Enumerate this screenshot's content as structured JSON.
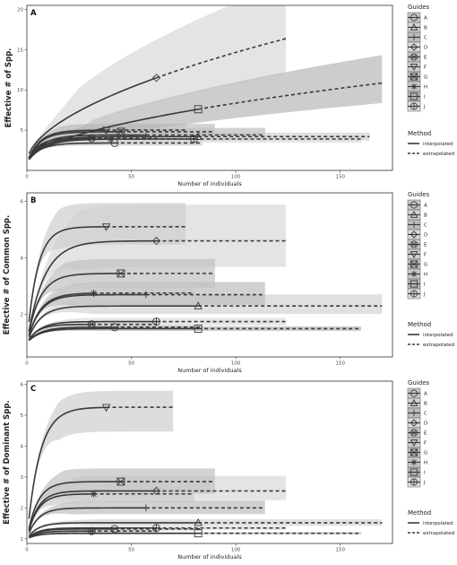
{
  "chart_data": [
    {
      "type": "line",
      "panel_label": "A",
      "xlabel": "Number of individuals",
      "ylabel": "Effective # of Spp.",
      "xlim": [
        0,
        175
      ],
      "ylim": [
        0,
        20.5
      ],
      "xticks": [
        "0",
        "50",
        "100",
        "150"
      ],
      "yticks": [
        "5",
        "10",
        "15",
        "20"
      ],
      "ytick_values": [
        5,
        10,
        15,
        20
      ],
      "series": [
        {
          "name": "A",
          "shape": "circle",
          "n": 42,
          "n_max": 84,
          "asym": 3.4,
          "k": 6,
          "band_lo": 0.88,
          "band_hi": 1.12,
          "shade": "#c8c8c8"
        },
        {
          "name": "B",
          "shape": "triangle",
          "n": 82,
          "n_max": 164,
          "asym": 4.2,
          "k": 8,
          "band_lo": 0.85,
          "band_hi": 1.15,
          "shade": "#d3d3d3"
        },
        {
          "name": "C",
          "shape": "plus",
          "n": 57,
          "n_max": 114,
          "asym": 4.4,
          "k": 7,
          "band_lo": 0.8,
          "band_hi": 1.25,
          "shade": "#bdbdbd"
        },
        {
          "name": "D",
          "shape": "diamond",
          "n": 62,
          "n_max": 124,
          "asym": 11.5,
          "k": 12,
          "power": true,
          "band_lo": 0.72,
          "band_hi": 1.45,
          "shade": "#d9d9d9"
        },
        {
          "name": "E",
          "shape": "xcircle",
          "n": 31,
          "n_max": 62,
          "asym": 4.0,
          "k": 5,
          "band_lo": 0.82,
          "band_hi": 1.22,
          "shade": "#c4c4c4"
        },
        {
          "name": "F",
          "shape": "triangle_down",
          "n": 38,
          "n_max": 76,
          "asym": 5.0,
          "k": 6,
          "band_lo": 0.85,
          "band_hi": 1.2,
          "shade": "#cfcfcf"
        },
        {
          "name": "G",
          "shape": "squarex",
          "n": 45,
          "n_max": 90,
          "asym": 4.8,
          "k": 6,
          "band_lo": 0.8,
          "band_hi": 1.25,
          "shade": "#c0c0c0"
        },
        {
          "name": "H",
          "shape": "asterisk",
          "n": 40,
          "n_max": 80,
          "asym": 3.9,
          "k": 6,
          "band_lo": 0.85,
          "band_hi": 1.18,
          "shade": "#cacaca"
        },
        {
          "name": "I",
          "shape": "square",
          "n": 82,
          "n_max": 170,
          "asym": 7.6,
          "k": 12,
          "power": true,
          "band_lo": 0.75,
          "band_hi": 1.35,
          "shade": "#b8b8b8"
        },
        {
          "name": "J",
          "shape": "circleplus",
          "n": 80,
          "n_max": 160,
          "asym": 3.9,
          "k": 8,
          "band_lo": 0.85,
          "band_hi": 1.15,
          "shade": "#dcdcdc"
        }
      ]
    },
    {
      "type": "line",
      "panel_label": "B",
      "xlabel": "Number of individuals",
      "ylabel": "Effective # of Common Spp.",
      "xlim": [
        0,
        175
      ],
      "ylim": [
        0.5,
        6.3
      ],
      "xticks": [
        "0",
        "50",
        "100",
        "150"
      ],
      "yticks": [
        "2",
        "4",
        "6"
      ],
      "ytick_values": [
        2,
        4,
        6
      ],
      "series": [
        {
          "name": "A",
          "shape": "circle",
          "n": 42,
          "n_max": 84,
          "asym": 1.55,
          "k": 6,
          "band_lo": 0.9,
          "band_hi": 1.1,
          "shade": "#c8c8c8"
        },
        {
          "name": "B",
          "shape": "triangle",
          "n": 82,
          "n_max": 170,
          "asym": 2.3,
          "k": 6,
          "band_lo": 0.8,
          "band_hi": 1.3,
          "shade": "#d3d3d3"
        },
        {
          "name": "C",
          "shape": "plus",
          "n": 57,
          "n_max": 114,
          "asym": 2.7,
          "k": 6,
          "band_lo": 0.8,
          "band_hi": 1.25,
          "shade": "#bdbdbd"
        },
        {
          "name": "D",
          "shape": "diamond",
          "n": 62,
          "n_max": 124,
          "asym": 4.6,
          "k": 8,
          "band_lo": 0.75,
          "band_hi": 1.35,
          "shade": "#d9d9d9"
        },
        {
          "name": "E",
          "shape": "xcircle",
          "n": 31,
          "n_max": 62,
          "asym": 1.65,
          "k": 5,
          "band_lo": 0.88,
          "band_hi": 1.15,
          "shade": "#c4c4c4"
        },
        {
          "name": "F",
          "shape": "triangle_down",
          "n": 38,
          "n_max": 76,
          "asym": 5.1,
          "k": 5,
          "band_lo": 0.85,
          "band_hi": 1.2,
          "shade": "#cfcfcf"
        },
        {
          "name": "G",
          "shape": "squarex",
          "n": 45,
          "n_max": 90,
          "asym": 3.45,
          "k": 6,
          "band_lo": 0.8,
          "band_hi": 1.2,
          "shade": "#c0c0c0"
        },
        {
          "name": "H",
          "shape": "asterisk",
          "n": 32,
          "n_max": 80,
          "asym": 2.75,
          "k": 6,
          "band_lo": 0.85,
          "band_hi": 1.18,
          "shade": "#cacaca"
        },
        {
          "name": "I",
          "shape": "square",
          "n": 82,
          "n_max": 160,
          "asym": 1.5,
          "k": 6,
          "band_lo": 0.88,
          "band_hi": 1.12,
          "shade": "#b8b8b8"
        },
        {
          "name": "J",
          "shape": "circleplus",
          "n": 62,
          "n_max": 124,
          "asym": 1.75,
          "k": 6,
          "band_lo": 0.85,
          "band_hi": 1.15,
          "shade": "#dcdcdc"
        }
      ]
    },
    {
      "type": "line",
      "panel_label": "C",
      "xlabel": "Number of individuals",
      "ylabel": "Effective # of Dominant Spp.",
      "xlim": [
        0,
        175
      ],
      "ylim": [
        0.85,
        6.1
      ],
      "xticks": [
        "0",
        "50",
        "100",
        "150"
      ],
      "yticks": [
        "1",
        "2",
        "3",
        "4",
        "5",
        "6"
      ],
      "ytick_values": [
        1,
        2,
        3,
        4,
        5,
        6
      ],
      "series": [
        {
          "name": "A",
          "shape": "circle",
          "n": 42,
          "n_max": 84,
          "asym": 1.32,
          "k": 5,
          "band_lo": 0.9,
          "band_hi": 1.1,
          "shade": "#c8c8c8"
        },
        {
          "name": "B",
          "shape": "triangle",
          "n": 82,
          "n_max": 170,
          "asym": 1.52,
          "k": 5,
          "band_lo": 0.85,
          "band_hi": 1.18,
          "shade": "#d3d3d3"
        },
        {
          "name": "C",
          "shape": "plus",
          "n": 57,
          "n_max": 114,
          "asym": 2.0,
          "k": 5,
          "band_lo": 0.82,
          "band_hi": 1.22,
          "shade": "#bdbdbd"
        },
        {
          "name": "D",
          "shape": "diamond",
          "n": 62,
          "n_max": 124,
          "asym": 2.55,
          "k": 5,
          "band_lo": 0.82,
          "band_hi": 1.3,
          "shade": "#d9d9d9"
        },
        {
          "name": "E",
          "shape": "xcircle",
          "n": 31,
          "n_max": 62,
          "asym": 1.25,
          "k": 5,
          "band_lo": 0.9,
          "band_hi": 1.1,
          "shade": "#c4c4c4"
        },
        {
          "name": "F",
          "shape": "triangle_down",
          "n": 38,
          "n_max": 70,
          "asym": 5.25,
          "k": 6,
          "band_lo": 0.82,
          "band_hi": 1.12,
          "shade": "#cfcfcf"
        },
        {
          "name": "G",
          "shape": "squarex",
          "n": 45,
          "n_max": 90,
          "asym": 2.85,
          "k": 5,
          "band_lo": 0.8,
          "band_hi": 1.22,
          "shade": "#c0c0c0"
        },
        {
          "name": "H",
          "shape": "asterisk",
          "n": 32,
          "n_max": 80,
          "asym": 2.45,
          "k": 5,
          "band_lo": 0.82,
          "band_hi": 1.2,
          "shade": "#cacaca"
        },
        {
          "name": "I",
          "shape": "square",
          "n": 82,
          "n_max": 160,
          "asym": 1.18,
          "k": 5,
          "band_lo": 0.9,
          "band_hi": 1.1,
          "shade": "#b8b8b8"
        },
        {
          "name": "J",
          "shape": "circleplus",
          "n": 62,
          "n_max": 124,
          "asym": 1.35,
          "k": 5,
          "band_lo": 0.88,
          "band_hi": 1.12,
          "shade": "#dcdcdc"
        }
      ]
    }
  ],
  "legends": {
    "guides_title": "Guides",
    "guides": [
      "A",
      "B",
      "C",
      "D",
      "E",
      "F",
      "G",
      "H",
      "I",
      "J"
    ],
    "method_title": "Method",
    "methods": [
      "interpolated",
      "extrapolated"
    ]
  },
  "colors": {
    "line": "#3a3a3a",
    "panel_border": "#333333",
    "background": "#ffffff"
  }
}
